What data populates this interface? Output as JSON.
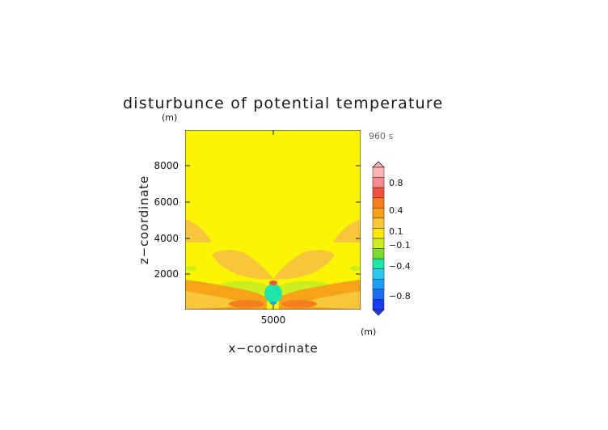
{
  "chart_data": {
    "type": "heatmap",
    "title": "disturbunce of potential temperature",
    "xlabel": "x−coordinate",
    "ylabel": "z−coordinate",
    "x_unit": "(m)",
    "y_unit": "(m)",
    "time_label": "960 s",
    "x_ticks": [
      5000
    ],
    "y_ticks": [
      2000,
      4000,
      6000,
      8000
    ],
    "xlim": [
      0,
      10000
    ],
    "ylim": [
      0,
      10000
    ],
    "grid": false,
    "legend_placement": "right",
    "colorbar_labels": [
      "0.8",
      "0.4",
      "0.1",
      "−0.1",
      "−0.4",
      "−0.8"
    ],
    "colorbar_colors": [
      "#fbb4b4",
      "#f78c8c",
      "#f2523e",
      "#f57e1f",
      "#f6a31a",
      "#f8c63a",
      "#fbe90e",
      "#ccee1e",
      "#7cdc32",
      "#1fe6a8",
      "#28c8f0",
      "#1aa0f6",
      "#1c6cf8",
      "#1a3cfa"
    ],
    "background_level": "#fbf504"
  }
}
